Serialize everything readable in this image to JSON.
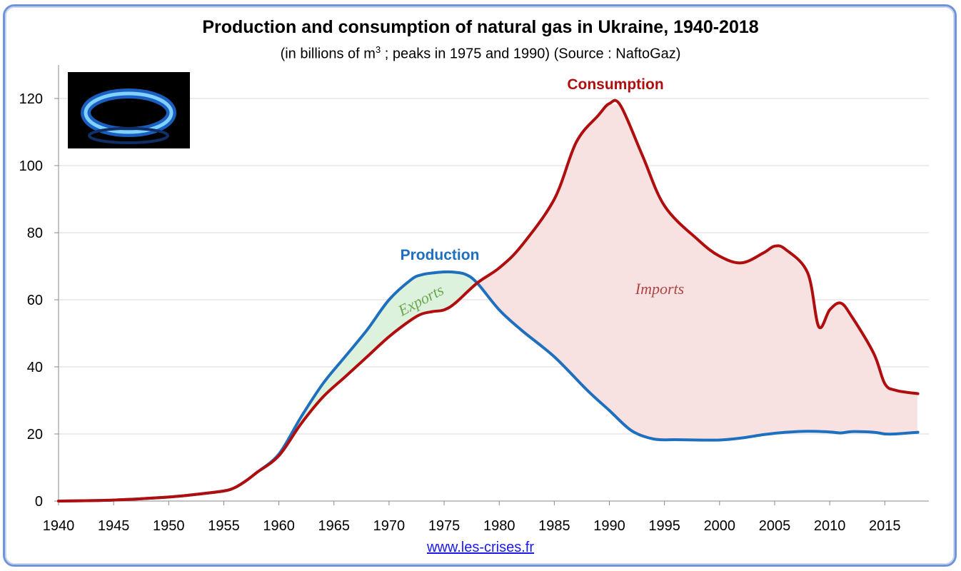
{
  "header": {
    "title": "Production and consumption of natural gas in Ukraine, 1940-2018",
    "subtitle_pre": "(in billions of m",
    "subtitle_sup": "3",
    "subtitle_post": " ; peaks in 1975 and 1990)  (Source : NaftoGaz)"
  },
  "footer": {
    "link_text": "www.les-crises.fr"
  },
  "colors": {
    "production": "#1f6fbf",
    "consumption": "#b00e0e",
    "exports_fill": "#dcf2dc",
    "imports_fill": "#f7e1e1",
    "exports_text": "#6aa84f",
    "imports_text": "#b04545",
    "grid": "#d9d9d9"
  },
  "image": {
    "icon": "gas-flame-photo"
  },
  "chart_data": {
    "type": "line",
    "title": "Production and consumption of natural gas in Ukraine, 1940-2018",
    "xlabel": "",
    "ylabel": "",
    "xlim": [
      1940,
      2019
    ],
    "ylim": [
      0,
      130
    ],
    "grid": true,
    "x_ticks": [
      1940,
      1945,
      1950,
      1955,
      1960,
      1965,
      1970,
      1975,
      1980,
      1985,
      1990,
      1995,
      2000,
      2005,
      2010,
      2015
    ],
    "y_ticks": [
      0,
      20,
      40,
      60,
      80,
      100,
      120
    ],
    "series": [
      {
        "name": "Production",
        "x": [
          1940,
          1945,
          1950,
          1953,
          1955,
          1956,
          1957,
          1958,
          1960,
          1962,
          1964,
          1966,
          1968,
          1970,
          1972,
          1973,
          1974,
          1975,
          1976,
          1977,
          1978,
          1980,
          1982,
          1985,
          1988,
          1990,
          1992,
          1994,
          1996,
          1998,
          2000,
          2002,
          2004,
          2006,
          2008,
          2010,
          2011,
          2012,
          2014,
          2015,
          2016,
          2018
        ],
        "values": [
          0,
          0.3,
          1.2,
          2.2,
          3,
          4,
          6,
          8.5,
          14,
          25,
          35,
          43,
          51,
          60,
          66,
          67.5,
          68,
          68.3,
          68.2,
          67.5,
          65,
          57,
          51,
          43,
          33,
          27,
          21,
          18.5,
          18.3,
          18.2,
          18.2,
          18.8,
          19.8,
          20.5,
          20.8,
          20.6,
          20.3,
          20.7,
          20.5,
          20,
          20,
          20.5
        ]
      },
      {
        "name": "Consumption",
        "x": [
          1940,
          1945,
          1950,
          1953,
          1955,
          1956,
          1957,
          1958,
          1960,
          1962,
          1964,
          1966,
          1968,
          1970,
          1972,
          1973,
          1974,
          1975,
          1976,
          1978,
          1980,
          1982,
          1985,
          1987,
          1989,
          1990,
          1991,
          1993,
          1995,
          1998,
          2000,
          2002,
          2004,
          2005,
          2006,
          2008,
          2009,
          2010,
          2011,
          2012,
          2014,
          2015,
          2016,
          2018
        ],
        "values": [
          0,
          0.3,
          1.2,
          2.2,
          3,
          4,
          6,
          8.5,
          13.5,
          23,
          31,
          37,
          43,
          49,
          54,
          55.8,
          56.5,
          57,
          59,
          65,
          69.5,
          76,
          90,
          107,
          115,
          118.5,
          118,
          103,
          88,
          78,
          73,
          71,
          74,
          76,
          75,
          68,
          52,
          57,
          59,
          55,
          44,
          35,
          33,
          32
        ]
      }
    ],
    "annotations": [
      "Exports",
      "Imports"
    ]
  }
}
